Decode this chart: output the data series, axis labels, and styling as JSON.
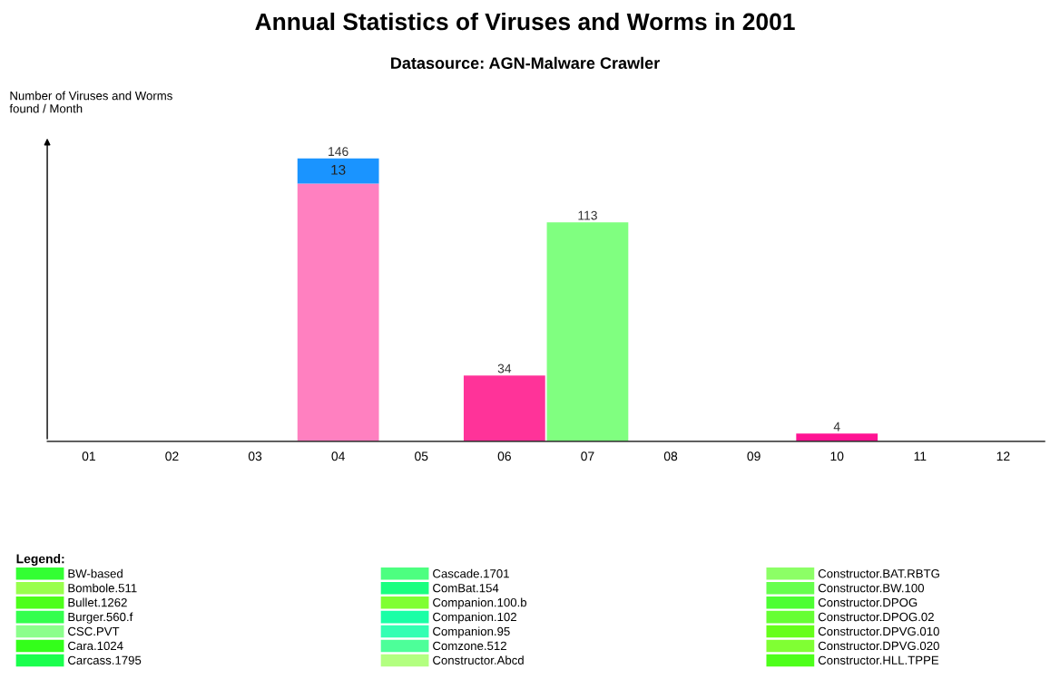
{
  "chart_data": {
    "type": "bar",
    "title": "Annual Statistics of Viruses and Worms in 2001",
    "subtitle": "Datasource: AGN-Malware Crawler",
    "ylabel": "Number of Viruses and Worms\nfound / Month",
    "legend_title": "Legend:",
    "categories": [
      "01",
      "02",
      "03",
      "04",
      "05",
      "06",
      "07",
      "08",
      "09",
      "10",
      "11",
      "12"
    ],
    "stacked": true,
    "tick_labels": "x",
    "legend": "bottom",
    "grid": false,
    "totals": [
      null,
      null,
      null,
      "146",
      null,
      "34",
      "113",
      null,
      null,
      "4",
      null,
      null
    ],
    "series": [
      {
        "colors": [
          "#ff80c0",
          "#ff80c0",
          "#ff80c0",
          "#ff80c0",
          "#ff80c0",
          "#ff3399",
          "#80ff80",
          "#ff80c0",
          "#ff80c0",
          "#ff1493",
          "#ff80c0",
          "#ff80c0"
        ],
        "values": [
          0,
          0,
          0,
          133,
          0,
          34,
          113,
          0,
          0,
          4,
          0,
          0
        ]
      },
      {
        "color": "#1a94ff",
        "values": [
          0,
          0,
          0,
          13,
          0,
          0,
          0,
          0,
          0,
          0,
          0,
          0
        ],
        "value_labels": [
          null,
          null,
          null,
          "13",
          null,
          null,
          null,
          null,
          null,
          null,
          null,
          null
        ]
      },
      {
        "name": "BW-based",
        "color": "#33ff33",
        "values": [
          null,
          null,
          null,
          null,
          null,
          null,
          null,
          null,
          null,
          null,
          null,
          null
        ]
      },
      {
        "name": "Bombole.511",
        "color": "#99ff4d",
        "values": [
          null,
          null,
          null,
          null,
          null,
          null,
          null,
          null,
          null,
          null,
          null,
          null
        ]
      },
      {
        "name": "Bullet.1262",
        "color": "#4dff1a",
        "values": [
          null,
          null,
          null,
          null,
          null,
          null,
          null,
          null,
          null,
          null,
          null,
          null
        ]
      },
      {
        "name": "Burger.560.f",
        "color": "#33ff4d",
        "values": [
          null,
          null,
          null,
          null,
          null,
          null,
          null,
          null,
          null,
          null,
          null,
          null
        ]
      },
      {
        "name": "CSC.PVT",
        "color": "#8cff8c",
        "values": [
          null,
          null,
          null,
          null,
          null,
          null,
          null,
          null,
          null,
          null,
          null,
          null
        ]
      },
      {
        "name": "Cara.1024",
        "color": "#33ff1a",
        "values": [
          null,
          null,
          null,
          null,
          null,
          null,
          null,
          null,
          null,
          null,
          null,
          null
        ]
      },
      {
        "name": "Carcass.1795",
        "color": "#1aff4d",
        "values": [
          null,
          null,
          null,
          null,
          null,
          null,
          null,
          null,
          null,
          null,
          null,
          null
        ]
      },
      {
        "name": "Cascade.1701",
        "color": "#4dff80",
        "values": [
          null,
          null,
          null,
          null,
          null,
          null,
          null,
          null,
          null,
          null,
          null,
          null
        ]
      },
      {
        "name": "ComBat.154",
        "color": "#1aff80",
        "values": [
          null,
          null,
          null,
          null,
          null,
          null,
          null,
          null,
          null,
          null,
          null,
          null
        ]
      },
      {
        "name": "Companion.100.b",
        "color": "#80ff33",
        "values": [
          null,
          null,
          null,
          null,
          null,
          null,
          null,
          null,
          null,
          null,
          null,
          null
        ]
      },
      {
        "name": "Companion.102",
        "color": "#1affa6",
        "values": [
          null,
          null,
          null,
          null,
          null,
          null,
          null,
          null,
          null,
          null,
          null,
          null
        ]
      },
      {
        "name": "Companion.95",
        "color": "#33ffb3",
        "values": [
          null,
          null,
          null,
          null,
          null,
          null,
          null,
          null,
          null,
          null,
          null,
          null
        ]
      },
      {
        "name": "Comzone.512",
        "color": "#4dff99",
        "values": [
          null,
          null,
          null,
          null,
          null,
          null,
          null,
          null,
          null,
          null,
          null,
          null
        ]
      },
      {
        "name": "Constructor.Abcd",
        "color": "#b3ff80",
        "values": [
          null,
          null,
          null,
          null,
          null,
          null,
          null,
          null,
          null,
          null,
          null,
          null
        ]
      },
      {
        "name": "Constructor.BAT.RBTG",
        "color": "#8cff66",
        "values": [
          null,
          null,
          null,
          null,
          null,
          null,
          null,
          null,
          null,
          null,
          null,
          null
        ]
      },
      {
        "name": "Constructor.BW.100",
        "color": "#66ff4d",
        "values": [
          null,
          null,
          null,
          null,
          null,
          null,
          null,
          null,
          null,
          null,
          null,
          null
        ]
      },
      {
        "name": "Constructor.DPOG",
        "color": "#4dff33",
        "values": [
          null,
          null,
          null,
          null,
          null,
          null,
          null,
          null,
          null,
          null,
          null,
          null
        ]
      },
      {
        "name": "Constructor.DPOG.02",
        "color": "#66ff33",
        "values": [
          null,
          null,
          null,
          null,
          null,
          null,
          null,
          null,
          null,
          null,
          null,
          null
        ]
      },
      {
        "name": "Constructor.DPVG.010",
        "color": "#66ff1a",
        "values": [
          null,
          null,
          null,
          null,
          null,
          null,
          null,
          null,
          null,
          null,
          null,
          null
        ]
      },
      {
        "name": "Constructor.DPVG.020",
        "color": "#80ff33",
        "values": [
          null,
          null,
          null,
          null,
          null,
          null,
          null,
          null,
          null,
          null,
          null,
          null
        ]
      },
      {
        "name": "Constructor.HLL.TPPE",
        "color": "#4dff1a",
        "values": [
          null,
          null,
          null,
          null,
          null,
          null,
          null,
          null,
          null,
          null,
          null,
          null
        ]
      }
    ]
  }
}
